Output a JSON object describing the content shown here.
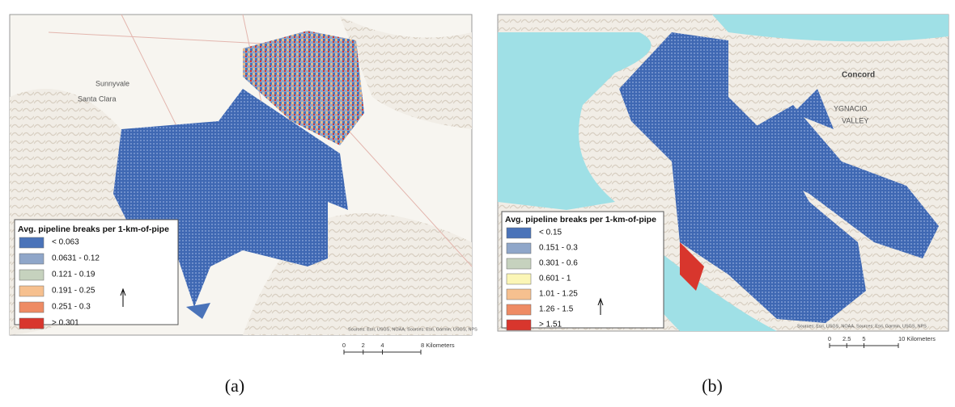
{
  "panels": [
    {
      "caption": "(a)",
      "places": [
        "Sunnyvale",
        "Santa Clara"
      ],
      "legend": {
        "title": "Avg. pipeline breaks per 1-km-of-pipe",
        "items": [
          {
            "label": "< 0.063",
            "color": "#4a73b9"
          },
          {
            "label": "0.0631 - 0.12",
            "color": "#8fa6c9"
          },
          {
            "label": "0.121 - 0.19",
            "color": "#c6d2be"
          },
          {
            "label": "0.191 - 0.25",
            "color": "#f6c08f"
          },
          {
            "label": "0.251 - 0.3",
            "color": "#ee8b64"
          },
          {
            "label": "> 0.301",
            "color": "#d8362d"
          }
        ]
      },
      "scale_bar": {
        "labels": [
          "0",
          "2",
          "4",
          "8 Kilometers"
        ]
      },
      "attribution": "Sources: Esri, USGS, NOAA, Sources: Esri, Garmin, USGS, NPS"
    },
    {
      "caption": "(b)",
      "places": [
        "Concord",
        "YGNACIO",
        "VALLEY"
      ],
      "legend": {
        "title": "Avg. pipeline breaks per 1-km-of-pipe",
        "items": [
          {
            "label": "< 0.15",
            "color": "#4a73b9"
          },
          {
            "label": "0.151 - 0.3",
            "color": "#8fa6c9"
          },
          {
            "label": "0.301 - 0.6",
            "color": "#c6d2be"
          },
          {
            "label": "0.601 - 1",
            "color": "#fbf6b6"
          },
          {
            "label": "1.01 - 1.25",
            "color": "#f6c08f"
          },
          {
            "label": "1.26 - 1.5",
            "color": "#ee8b64"
          },
          {
            "label": "> 1.51",
            "color": "#d8362d"
          }
        ]
      },
      "scale_bar": {
        "labels": [
          "0",
          "2.5",
          "5",
          "10 Kilometers"
        ]
      },
      "attribution": "Sources: Esri, USGS, NOAA, Sources: Esri, Garmin, USGS, NPS"
    }
  ]
}
